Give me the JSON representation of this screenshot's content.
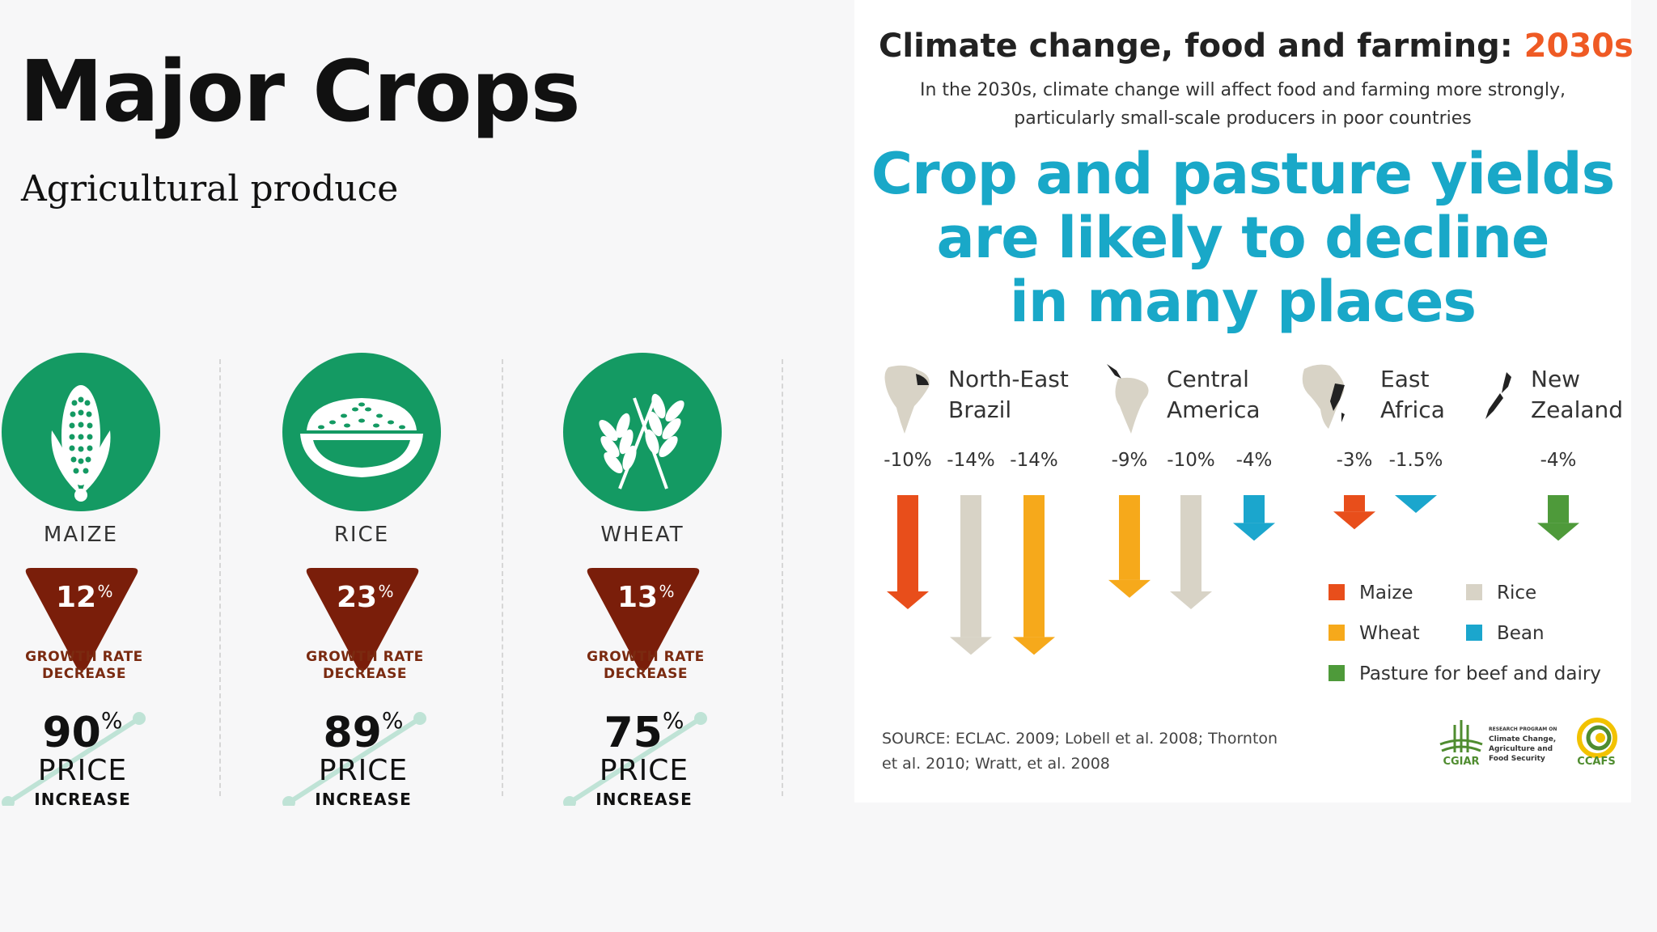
{
  "left": {
    "title": "Major Crops",
    "subtitle": "Agricultural produce",
    "crops": [
      {
        "name": "MAIZE",
        "icon": "maize-icon",
        "growth_rate": "12",
        "growth_unit": "%",
        "growth_label_1": "GROWTH RATE",
        "growth_label_2": "DECREASE",
        "price": "90",
        "price_unit": "%",
        "price_word": "PRICE",
        "price_change": "INCREASE"
      },
      {
        "name": "RICE",
        "icon": "rice-bowl-icon",
        "growth_rate": "23",
        "growth_unit": "%",
        "growth_label_1": "GROWTH RATE",
        "growth_label_2": "DECREASE",
        "price": "89",
        "price_unit": "%",
        "price_word": "PRICE",
        "price_change": "INCREASE"
      },
      {
        "name": "WHEAT",
        "icon": "wheat-icon",
        "growth_rate": "13",
        "growth_unit": "%",
        "growth_label_1": "GROWTH RATE",
        "growth_label_2": "DECREASE",
        "price": "75",
        "price_unit": "%",
        "price_word": "PRICE",
        "price_change": "INCREASE"
      }
    ]
  },
  "right": {
    "title_main": "Climate change, food and farming: ",
    "title_accent": "2030s",
    "intro_line1": "In the 2030s, climate change will  affect food and farming more strongly,",
    "intro_line2": "particularly small-scale producers in poor countries",
    "headline_line1": "Crop and pasture yields",
    "headline_line2": "are likely to decline",
    "headline_line3": "in many places",
    "regions": [
      {
        "name_line1": "North-East",
        "name_line2": "Brazil"
      },
      {
        "name_line1": "Central",
        "name_line2": "America"
      },
      {
        "name_line1": "East",
        "name_line2": "Africa"
      },
      {
        "name_line1": "New",
        "name_line2": "Zealand"
      }
    ],
    "legend": {
      "maize": "Maize",
      "rice": "Rice",
      "wheat": "Wheat",
      "bean": "Bean",
      "pasture": "Pasture for beef and dairy"
    },
    "source_line1": "SOURCE:   ECLAC. 2009; Lobell et al. 2008; Thornton",
    "source_line2": "et al. 2010; Wratt, et al. 2008",
    "logos": {
      "cgiar": "CGIAR",
      "program_line1": "RESEARCH PROGRAM ON",
      "program_line2": "Climate Change,",
      "program_line3": "Agriculture and",
      "program_line4": "Food Security",
      "ccafs": "CCAFS"
    }
  },
  "colors": {
    "crop_green": "#149a63",
    "decrease_brown": "#7a1e0a",
    "headline_blue": "#19a8c8",
    "title_accent": "#ef5a24",
    "maize": "#e84e1b",
    "rice": "#d8d3c6",
    "wheat": "#f6a91b",
    "bean": "#1ba6cd",
    "pasture": "#4e9a3a"
  },
  "chart_data": {
    "type": "bar",
    "title": "Crop and pasture yields are likely to decline in many places",
    "unit": "%",
    "groups": [
      {
        "region": "North-East Brazil",
        "bars": [
          {
            "crop": "Maize",
            "value": -10,
            "label": "-10%"
          },
          {
            "crop": "Rice",
            "value": -14,
            "label": "-14%"
          },
          {
            "crop": "Wheat",
            "value": -14,
            "label": "-14%"
          }
        ]
      },
      {
        "region": "Central America",
        "bars": [
          {
            "crop": "Wheat",
            "value": -9,
            "label": "-9%"
          },
          {
            "crop": "Rice",
            "value": -10,
            "label": "-10%"
          },
          {
            "crop": "Bean",
            "value": -4,
            "label": "-4%"
          }
        ]
      },
      {
        "region": "East Africa",
        "bars": [
          {
            "crop": "Maize",
            "value": -3,
            "label": "-3%"
          },
          {
            "crop": "Bean",
            "value": -1.5,
            "label": "-1.5%"
          }
        ]
      },
      {
        "region": "New Zealand",
        "bars": [
          {
            "crop": "Pasture for beef and dairy",
            "value": -4,
            "label": "-4%"
          }
        ]
      }
    ]
  }
}
